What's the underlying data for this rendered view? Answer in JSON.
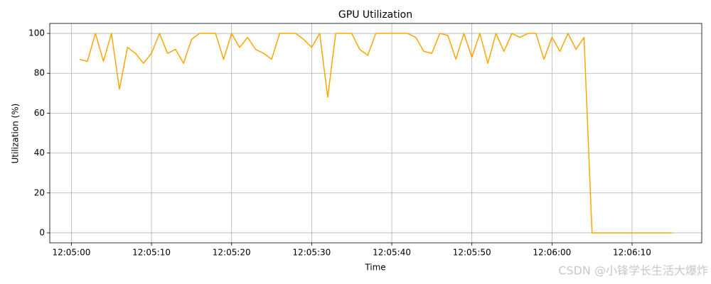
{
  "chart_data": {
    "type": "line",
    "title": "GPU Utilization",
    "x_label": "Time",
    "y_label": "Utilization (%)",
    "x": [
      "12:05:01",
      "12:05:02",
      "12:05:03",
      "12:05:04",
      "12:05:05",
      "12:05:06",
      "12:05:07",
      "12:05:08",
      "12:05:09",
      "12:05:10",
      "12:05:11",
      "12:05:12",
      "12:05:13",
      "12:05:14",
      "12:05:15",
      "12:05:16",
      "12:05:17",
      "12:05:18",
      "12:05:19",
      "12:05:20",
      "12:05:21",
      "12:05:22",
      "12:05:23",
      "12:05:24",
      "12:05:25",
      "12:05:26",
      "12:05:27",
      "12:05:28",
      "12:05:29",
      "12:05:30",
      "12:05:31",
      "12:05:32",
      "12:05:33",
      "12:05:34",
      "12:05:35",
      "12:05:36",
      "12:05:37",
      "12:05:38",
      "12:05:39",
      "12:05:40",
      "12:05:41",
      "12:05:42",
      "12:05:43",
      "12:05:44",
      "12:05:45",
      "12:05:46",
      "12:05:47",
      "12:05:48",
      "12:05:49",
      "12:05:50",
      "12:05:51",
      "12:05:52",
      "12:05:53",
      "12:05:54",
      "12:05:55",
      "12:05:56",
      "12:05:57",
      "12:05:58",
      "12:05:59",
      "12:06:00",
      "12:06:01",
      "12:06:02",
      "12:06:03",
      "12:06:04",
      "12:06:05",
      "12:06:06",
      "12:06:07",
      "12:06:08",
      "12:06:09",
      "12:06:10",
      "12:06:11",
      "12:06:12",
      "12:06:13",
      "12:06:14",
      "12:06:15"
    ],
    "values": [
      87,
      86,
      100,
      86,
      100,
      72,
      93,
      90,
      85,
      90,
      100,
      90,
      92,
      85,
      97,
      100,
      100,
      100,
      87,
      100,
      93,
      98,
      92,
      90,
      87,
      100,
      100,
      100,
      97,
      93,
      100,
      68,
      100,
      100,
      100,
      92,
      89,
      100,
      100,
      100,
      100,
      100,
      98,
      91,
      90,
      100,
      99,
      87,
      100,
      88,
      100,
      85,
      100,
      91,
      100,
      98,
      100,
      100,
      87,
      98,
      91,
      100,
      92,
      98,
      0,
      0,
      0,
      0,
      0,
      0,
      0,
      0,
      0,
      0,
      0
    ],
    "color": "#ffa500",
    "xlim": [
      "12:04:57.3",
      "12:06:18.7"
    ],
    "xticks": [
      "12:05:00",
      "12:05:10",
      "12:05:20",
      "12:05:30",
      "12:05:40",
      "12:05:50",
      "12:06:00",
      "12:06:10"
    ],
    "ylim": [
      -5,
      105
    ],
    "yticks": [
      0,
      20,
      40,
      60,
      80,
      100
    ],
    "grid": true
  },
  "watermark": "CSDN @小锋学长生活大爆炸"
}
